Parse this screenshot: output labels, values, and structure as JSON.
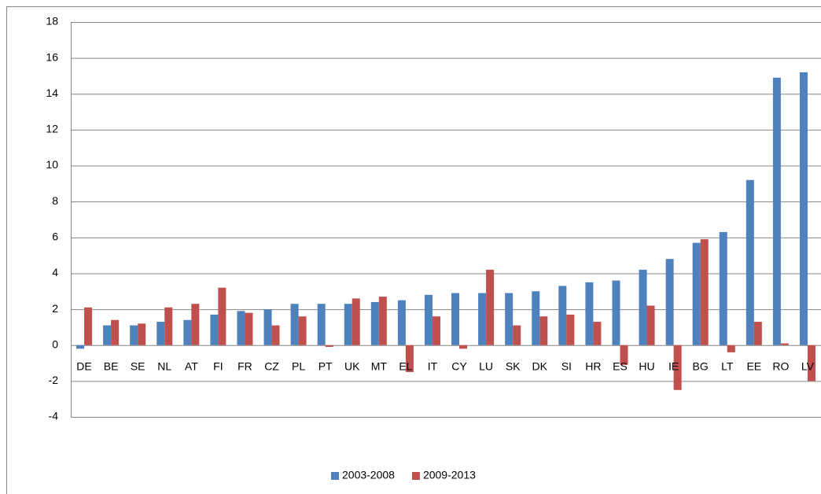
{
  "chart_data": {
    "type": "bar",
    "categories": [
      "DE",
      "BE",
      "SE",
      "NL",
      "AT",
      "FI",
      "FR",
      "CZ",
      "PL",
      "PT",
      "UK",
      "MT",
      "EL",
      "IT",
      "CY",
      "LU",
      "SK",
      "DK",
      "SI",
      "HR",
      "ES",
      "HU",
      "IE",
      "BG",
      "LT",
      "EE",
      "RO",
      "LV"
    ],
    "series": [
      {
        "name": "2003-2008",
        "color": "#4f81bd",
        "values": [
          -0.2,
          1.1,
          1.1,
          1.3,
          1.4,
          1.7,
          1.9,
          2.0,
          2.3,
          2.3,
          2.3,
          2.4,
          2.5,
          2.8,
          2.9,
          2.9,
          2.9,
          3.0,
          3.3,
          3.5,
          3.6,
          4.2,
          4.8,
          5.7,
          6.3,
          9.2,
          14.9,
          15.2
        ]
      },
      {
        "name": "2009-2013",
        "color": "#c0504d",
        "values": [
          2.1,
          1.4,
          1.2,
          2.1,
          2.3,
          3.2,
          1.8,
          1.1,
          1.6,
          -0.1,
          2.6,
          2.7,
          -1.5,
          1.6,
          -0.2,
          4.2,
          1.1,
          1.6,
          1.7,
          1.3,
          -1.1,
          2.2,
          -2.5,
          5.9,
          -0.4,
          1.3,
          0.1,
          -2.0
        ]
      }
    ],
    "ylim": [
      -4,
      18
    ],
    "yticks": [
      -4,
      -2,
      0,
      2,
      4,
      6,
      8,
      10,
      12,
      14,
      16,
      18
    ],
    "grid": true,
    "legend": "bottom"
  }
}
